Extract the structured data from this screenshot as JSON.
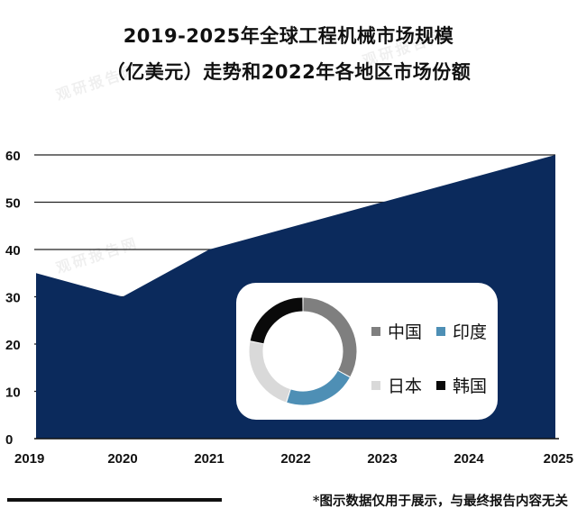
{
  "title": {
    "line1": "2019-2025年全球工程机械市场规模",
    "line2": "（亿美元）走势和2022年各地区市场份额"
  },
  "footer": {
    "note": "*图示数据仅用于展示，与最终报告内容无关"
  },
  "colors": {
    "area": "#0b2a5c",
    "grid": "#222222",
    "china": "#7f7f7f",
    "india": "#4e8fb5",
    "japan": "#d9d9d9",
    "korea": "#0a0a0a"
  },
  "chart_data": [
    {
      "type": "area",
      "categories": [
        "2019",
        "2020",
        "2021",
        "2022",
        "2023",
        "2024",
        "2025"
      ],
      "series": [
        {
          "values": [
            35,
            30,
            40,
            45,
            50,
            55,
            60
          ]
        }
      ],
      "yticks": [
        "0",
        "10",
        "20",
        "30",
        "40",
        "50",
        "60"
      ],
      "ylim": [
        0,
        60
      ],
      "grid": true
    },
    {
      "type": "pie",
      "style": "donut",
      "categories": [
        "中国",
        "印度",
        "日本",
        "韩国"
      ],
      "values": [
        33,
        22,
        23,
        22
      ],
      "legend": [
        "中国",
        "印度",
        "日本",
        "韩国"
      ]
    }
  ]
}
